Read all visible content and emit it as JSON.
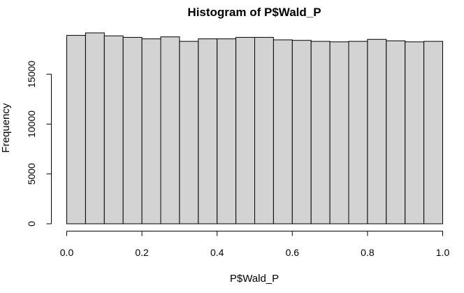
{
  "chart_data": {
    "type": "bar",
    "title": "Histogram of P$Wald_P",
    "xlabel": "P$Wald_P",
    "ylabel": "Frequency",
    "bin_edges": [
      0.0,
      0.05,
      0.1,
      0.15,
      0.2,
      0.25,
      0.3,
      0.35,
      0.4,
      0.45,
      0.5,
      0.55,
      0.6,
      0.65,
      0.7,
      0.75,
      0.8,
      0.85,
      0.9,
      0.95,
      1.0
    ],
    "values": [
      18900,
      19150,
      18850,
      18700,
      18550,
      18750,
      18300,
      18550,
      18550,
      18700,
      18700,
      18450,
      18400,
      18300,
      18250,
      18300,
      18500,
      18350,
      18250,
      18300
    ],
    "xlim": [
      0,
      1
    ],
    "ylim": [
      0,
      19150
    ],
    "x_ticks": [
      "0.0",
      "0.2",
      "0.4",
      "0.6",
      "0.8",
      "1.0"
    ],
    "y_ticks": [
      "0",
      "5000",
      "10000",
      "15000"
    ],
    "bar_color": "#d3d3d3",
    "grid": false
  }
}
